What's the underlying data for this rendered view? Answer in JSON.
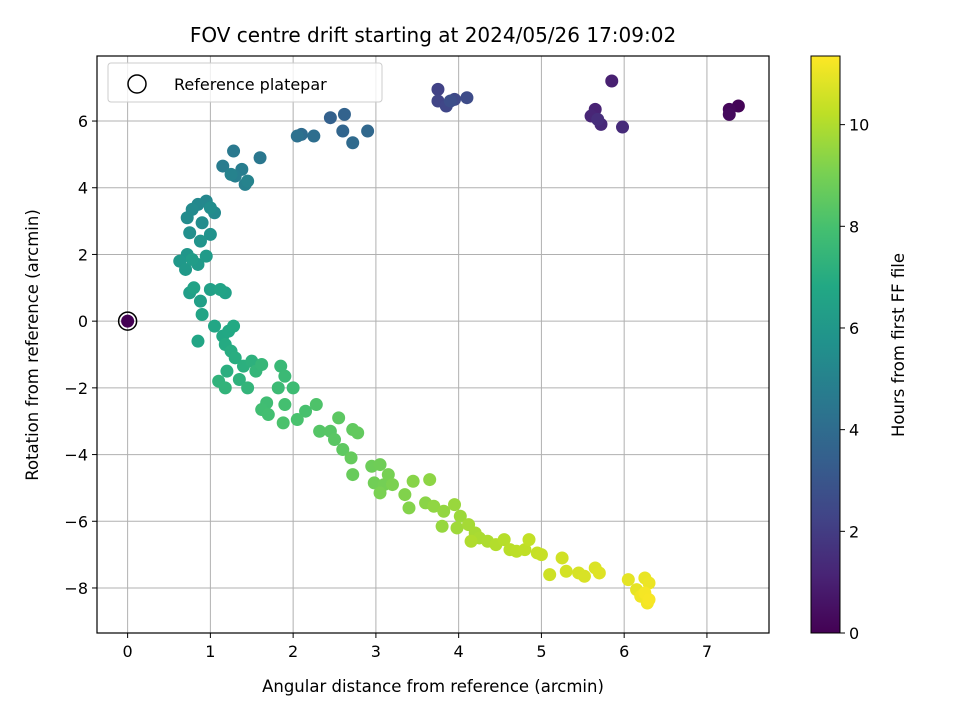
{
  "chart_data": {
    "type": "scatter",
    "title": "FOV centre drift starting at 2024/05/26 17:09:02",
    "xlabel": "Angular distance from reference (arcmin)",
    "ylabel": "Rotation from reference (arcmin)",
    "xlim": [
      -0.37,
      7.75
    ],
    "ylim": [
      -9.35,
      7.95
    ],
    "xticks": [
      0,
      1,
      2,
      3,
      4,
      5,
      6,
      7
    ],
    "yticks": [
      -8,
      -6,
      -4,
      -2,
      0,
      2,
      4,
      6
    ],
    "grid": true,
    "legend": {
      "placement": "top-left",
      "entries": [
        "Reference platepar"
      ]
    },
    "colorbar": {
      "label": "Hours from first FF file",
      "colormap": "viridis",
      "range": [
        0,
        11.35
      ],
      "ticks": [
        0,
        2,
        4,
        6,
        8,
        10
      ]
    },
    "reference_point": {
      "x": 0,
      "y": 0
    },
    "points": [
      [
        7.38,
        6.45,
        0.1
      ],
      [
        7.27,
        6.35,
        0.2
      ],
      [
        7.27,
        6.2,
        0.3
      ],
      [
        5.85,
        7.2,
        1.0
      ],
      [
        5.65,
        6.35,
        1.1
      ],
      [
        5.6,
        6.15,
        1.2
      ],
      [
        5.72,
        5.9,
        1.3
      ],
      [
        5.98,
        5.82,
        1.4
      ],
      [
        5.68,
        6.05,
        1.5
      ],
      [
        3.75,
        6.95,
        2.2
      ],
      [
        3.75,
        6.6,
        2.3
      ],
      [
        3.85,
        6.45,
        2.4
      ],
      [
        3.95,
        6.65,
        2.5
      ],
      [
        4.1,
        6.7,
        2.6
      ],
      [
        3.9,
        6.6,
        2.7
      ],
      [
        2.45,
        6.1,
        3.5
      ],
      [
        2.62,
        6.2,
        3.6
      ],
      [
        2.6,
        5.7,
        3.7
      ],
      [
        2.9,
        5.7,
        3.8
      ],
      [
        2.72,
        5.35,
        3.9
      ],
      [
        2.1,
        5.6,
        4.0
      ],
      [
        2.25,
        5.55,
        4.1
      ],
      [
        2.05,
        5.55,
        4.2
      ],
      [
        1.6,
        4.9,
        4.5
      ],
      [
        1.28,
        5.1,
        4.6
      ],
      [
        1.15,
        4.65,
        4.7
      ],
      [
        1.38,
        4.55,
        4.75
      ],
      [
        1.3,
        4.35,
        4.8
      ],
      [
        1.42,
        4.1,
        4.9
      ],
      [
        1.25,
        4.4,
        5.0
      ],
      [
        1.45,
        4.2,
        5.05
      ],
      [
        0.95,
        3.6,
        5.2
      ],
      [
        0.85,
        3.5,
        5.25
      ],
      [
        1.05,
        3.25,
        5.3
      ],
      [
        0.78,
        3.35,
        5.35
      ],
      [
        0.72,
        3.1,
        5.4
      ],
      [
        0.9,
        2.95,
        5.45
      ],
      [
        1.0,
        3.4,
        5.5
      ],
      [
        0.75,
        2.65,
        5.6
      ],
      [
        1.0,
        2.6,
        5.7
      ],
      [
        0.88,
        2.4,
        5.8
      ],
      [
        0.72,
        2.0,
        5.9
      ],
      [
        0.63,
        1.8,
        6.0
      ],
      [
        0.7,
        1.55,
        6.05
      ],
      [
        0.85,
        1.7,
        6.1
      ],
      [
        0.95,
        1.95,
        6.15
      ],
      [
        0.78,
        1.85,
        6.2
      ],
      [
        0.75,
        0.85,
        6.3
      ],
      [
        0.88,
        0.6,
        6.35
      ],
      [
        1.0,
        0.95,
        6.4
      ],
      [
        1.18,
        0.85,
        6.45
      ],
      [
        0.8,
        1.0,
        6.5
      ],
      [
        1.12,
        0.95,
        6.55
      ],
      [
        0.9,
        0.2,
        6.6
      ],
      [
        0.85,
        -0.6,
        6.65
      ],
      [
        1.05,
        -0.15,
        6.7
      ],
      [
        1.15,
        -0.45,
        6.75
      ],
      [
        1.22,
        -0.3,
        6.8
      ],
      [
        1.28,
        -0.15,
        6.85
      ],
      [
        1.18,
        -0.7,
        6.9
      ],
      [
        1.25,
        -0.9,
        7.0
      ],
      [
        1.3,
        -1.1,
        7.05
      ],
      [
        1.2,
        -1.5,
        7.1
      ],
      [
        1.4,
        -1.35,
        7.15
      ],
      [
        1.5,
        -1.2,
        7.2
      ],
      [
        1.35,
        -1.75,
        7.25
      ],
      [
        1.1,
        -1.8,
        7.3
      ],
      [
        1.18,
        -2.0,
        7.35
      ],
      [
        1.45,
        -2.0,
        7.4
      ],
      [
        1.55,
        -1.5,
        7.45
      ],
      [
        1.62,
        -1.3,
        7.5
      ],
      [
        1.85,
        -1.35,
        7.6
      ],
      [
        1.9,
        -1.65,
        7.65
      ],
      [
        1.82,
        -2.0,
        7.7
      ],
      [
        2.0,
        -2.0,
        7.75
      ],
      [
        1.68,
        -2.45,
        7.8
      ],
      [
        1.62,
        -2.65,
        7.85
      ],
      [
        1.7,
        -2.8,
        7.9
      ],
      [
        1.9,
        -2.5,
        7.95
      ],
      [
        2.15,
        -2.7,
        8.0
      ],
      [
        2.05,
        -2.95,
        8.05
      ],
      [
        1.88,
        -3.05,
        8.1
      ],
      [
        2.28,
        -2.5,
        8.15
      ],
      [
        2.32,
        -3.3,
        8.3
      ],
      [
        2.45,
        -3.3,
        8.35
      ],
      [
        2.5,
        -3.55,
        8.4
      ],
      [
        2.55,
        -2.9,
        8.45
      ],
      [
        2.6,
        -3.85,
        8.5
      ],
      [
        2.72,
        -3.25,
        8.55
      ],
      [
        2.78,
        -3.35,
        8.6
      ],
      [
        2.7,
        -4.1,
        8.65
      ],
      [
        2.72,
        -4.6,
        8.7
      ],
      [
        2.95,
        -4.35,
        8.8
      ],
      [
        3.05,
        -4.3,
        8.85
      ],
      [
        2.98,
        -4.85,
        8.9
      ],
      [
        3.1,
        -4.9,
        8.95
      ],
      [
        3.15,
        -4.6,
        9.0
      ],
      [
        3.05,
        -5.15,
        9.05
      ],
      [
        3.2,
        -4.9,
        9.1
      ],
      [
        3.35,
        -5.2,
        9.2
      ],
      [
        3.4,
        -5.6,
        9.25
      ],
      [
        3.45,
        -4.8,
        9.3
      ],
      [
        3.6,
        -5.45,
        9.35
      ],
      [
        3.65,
        -4.75,
        9.4
      ],
      [
        3.7,
        -5.55,
        9.45
      ],
      [
        3.82,
        -5.7,
        9.5
      ],
      [
        3.8,
        -6.15,
        9.55
      ],
      [
        3.95,
        -5.5,
        9.6
      ],
      [
        4.02,
        -5.85,
        9.65
      ],
      [
        3.98,
        -6.2,
        9.7
      ],
      [
        4.12,
        -6.1,
        9.8
      ],
      [
        4.2,
        -6.35,
        9.85
      ],
      [
        4.25,
        -6.5,
        9.9
      ],
      [
        4.35,
        -6.6,
        9.95
      ],
      [
        4.15,
        -6.6,
        10.0
      ],
      [
        4.45,
        -6.7,
        10.05
      ],
      [
        4.55,
        -6.55,
        10.1
      ],
      [
        4.62,
        -6.85,
        10.15
      ],
      [
        4.7,
        -6.9,
        10.2
      ],
      [
        4.8,
        -6.85,
        10.25
      ],
      [
        4.85,
        -6.55,
        10.3
      ],
      [
        4.95,
        -6.95,
        10.35
      ],
      [
        5.0,
        -7.0,
        10.4
      ],
      [
        5.1,
        -7.6,
        10.5
      ],
      [
        5.25,
        -7.1,
        10.55
      ],
      [
        5.3,
        -7.5,
        10.6
      ],
      [
        5.45,
        -7.55,
        10.65
      ],
      [
        5.52,
        -7.65,
        10.7
      ],
      [
        5.65,
        -7.4,
        10.75
      ],
      [
        5.7,
        -7.55,
        10.8
      ],
      [
        6.05,
        -7.75,
        10.9
      ],
      [
        6.15,
        -8.05,
        10.95
      ],
      [
        6.25,
        -7.7,
        11.0
      ],
      [
        6.3,
        -7.85,
        11.05
      ],
      [
        6.2,
        -8.25,
        11.1
      ],
      [
        6.28,
        -8.45,
        11.15
      ],
      [
        6.25,
        -8.15,
        11.2
      ],
      [
        6.3,
        -8.35,
        11.25
      ]
    ]
  }
}
